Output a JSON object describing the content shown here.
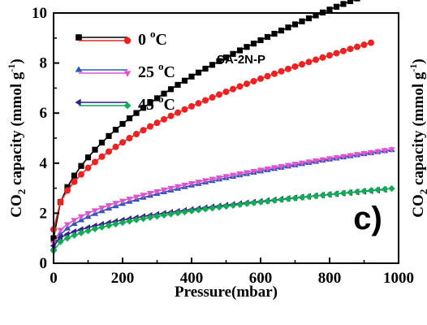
{
  "chart_data": {
    "type": "scatter",
    "ylabel": "CO2 capacity (mmol g-1)",
    "xlabel": "Pressure(mbar)",
    "xlim": [
      0,
      1000
    ],
    "ylim": [
      0,
      10
    ],
    "xticks": [
      0,
      200,
      400,
      600,
      800,
      1000
    ],
    "yticks": [
      0,
      2,
      4,
      6,
      8,
      10
    ],
    "grid": false,
    "legend_position": "top-left",
    "sample_label": "SA-2N-P",
    "panel_label": "c)",
    "legend": [
      {
        "label": "0 °C",
        "text": "0 ",
        "deg": "o",
        "unit": "C"
      },
      {
        "label": "25 °C",
        "text": "25 ",
        "deg": "o",
        "unit": "C"
      },
      {
        "label": "45 °C",
        "text": "45 ",
        "deg": "o",
        "unit": "C"
      }
    ],
    "series": [
      {
        "group": 0,
        "marker": "square",
        "color": "#000000",
        "curve": {
          "a": 1.0,
          "b": 0.323,
          "c": 0.0
        },
        "x_range": [
          0,
          935
        ],
        "step": 20
      },
      {
        "group": 0,
        "marker": "circle",
        "color": "#ee2222",
        "curve": {
          "a": 1.35,
          "b": 0.246,
          "c": 0.0
        },
        "x_range": [
          0,
          920
        ],
        "step": 20
      },
      {
        "group": 1,
        "marker": "triangle-up",
        "color": "#3355bb",
        "curve": {
          "a": 0.6,
          "b": 0.1254,
          "c": 0.0
        },
        "x_range": [
          0,
          990
        ],
        "step": 20
      },
      {
        "group": 1,
        "marker": "triangle-down",
        "color": "#dd55cc",
        "curve": {
          "a": 0.8,
          "b": 0.1199,
          "c": 0.0
        },
        "x_range": [
          0,
          985
        ],
        "step": 20
      },
      {
        "group": 2,
        "marker": "triangle-left",
        "color": "#332288",
        "curve": {
          "a": 0.7,
          "b": 0.0724,
          "c": 0.0
        },
        "x_range": [
          0,
          960
        ],
        "step": 20
      },
      {
        "group": 2,
        "marker": "diamond",
        "color": "#11aa55",
        "curve": {
          "a": 0.5,
          "b": 0.0794,
          "c": 0.0
        },
        "x_range": [
          0,
          990
        ],
        "step": 20
      }
    ]
  },
  "neighbor_panel": {
    "ylabel_fragment": "CO2 capacity (mmol g-1)"
  }
}
